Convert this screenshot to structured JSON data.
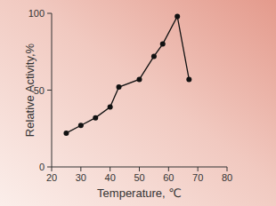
{
  "chart_data": {
    "type": "line",
    "x_label": "Temperature, ℃",
    "y_label": "Relative Activity,%",
    "x": [
      25,
      30,
      35,
      40,
      43,
      50,
      55,
      58,
      63,
      67
    ],
    "values": [
      22,
      27,
      32,
      39,
      52,
      57,
      72,
      80,
      98,
      57
    ],
    "color": "#111111",
    "marker": "circle",
    "xlim": [
      20,
      80
    ],
    "xticks": [
      20,
      30,
      40,
      50,
      60,
      70,
      80
    ],
    "ylim": [
      0,
      100
    ],
    "yticks": [
      0,
      50,
      100
    ],
    "grid": false
  }
}
